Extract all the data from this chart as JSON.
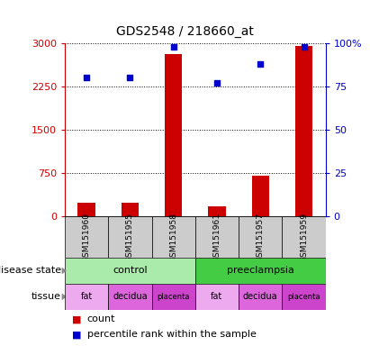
{
  "title": "GDS2548 / 218660_at",
  "samples": [
    "GSM151960",
    "GSM151955",
    "GSM151958",
    "GSM151961",
    "GSM151957",
    "GSM151959"
  ],
  "counts": [
    230,
    240,
    2820,
    170,
    710,
    2960
  ],
  "percentiles": [
    80,
    80,
    98,
    77,
    88,
    98
  ],
  "ylim_left": [
    0,
    3000
  ],
  "ylim_right": [
    0,
    100
  ],
  "yticks_left": [
    0,
    750,
    1500,
    2250,
    3000
  ],
  "yticks_right": [
    0,
    25,
    50,
    75,
    100
  ],
  "ytick_labels_left": [
    "0",
    "750",
    "1500",
    "2250",
    "3000"
  ],
  "ytick_labels_right": [
    "0",
    "25",
    "50",
    "75",
    "100%"
  ],
  "bar_color": "#cc0000",
  "dot_color": "#0000cc",
  "control_color": "#aaeaaa",
  "preeclampsia_color": "#44cc44",
  "tissue_colors": {
    "fat": "#eeaaee",
    "decidua": "#dd66dd",
    "placenta": "#cc44cc"
  },
  "tick_area_bg": "#cccccc",
  "left_axis_color": "#cc0000",
  "right_axis_color": "#0000cc",
  "legend_count_color": "#cc0000",
  "legend_dot_color": "#0000cc"
}
